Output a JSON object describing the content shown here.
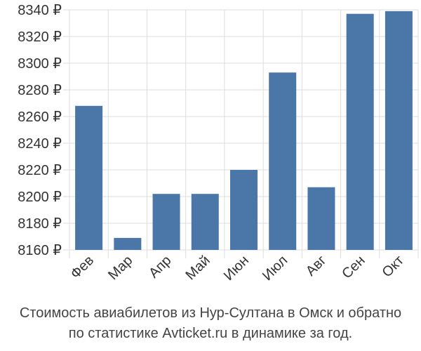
{
  "chart_data": {
    "type": "bar",
    "categories": [
      "Фев",
      "Мар",
      "Апр",
      "Май",
      "Июн",
      "Июл",
      "Авг",
      "Сен",
      "Окт"
    ],
    "values": [
      8268,
      8169,
      8202,
      8202,
      8220,
      8293,
      8207,
      8337,
      8339
    ],
    "ylim": [
      8160,
      8340
    ],
    "yticks": [
      8160,
      8180,
      8200,
      8220,
      8240,
      8260,
      8280,
      8300,
      8320,
      8340
    ],
    "ytick_labels": [
      "8160 ₽",
      "8180 ₽",
      "8200 ₽",
      "8220 ₽",
      "8240 ₽",
      "8260 ₽",
      "8280 ₽",
      "8300 ₽",
      "8320 ₽",
      "8340 ₽"
    ],
    "grid": true,
    "bar_color": "#4a76a8",
    "grid_color": "#dddddd"
  },
  "caption": {
    "line1": "Стоимость авиабилетов из Нур-Султана в Омск и обратно",
    "line2": "по статистике Avticket.ru в динамике за год."
  }
}
